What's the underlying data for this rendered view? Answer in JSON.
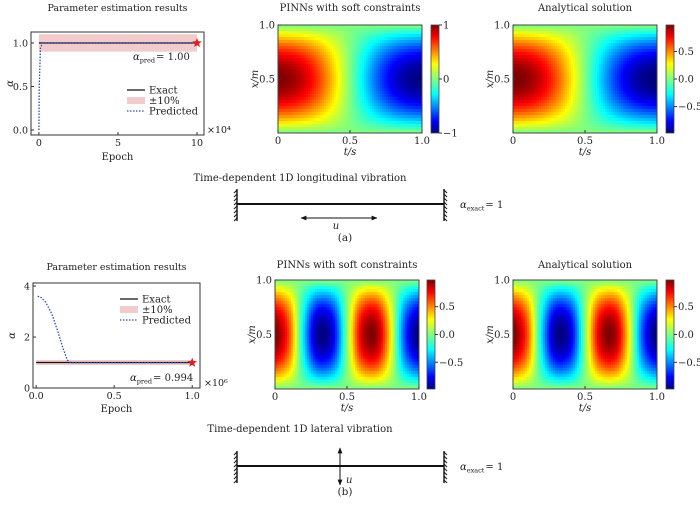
{
  "colors": {
    "band": "#f2cccc",
    "predicted": "#2b4fb0",
    "exact": "#111111",
    "star": "#e02020"
  },
  "chart_data": [
    {
      "id": "a-param",
      "type": "line",
      "title": "Parameter estimation results",
      "xlabel": "Epoch",
      "ylabel": "α",
      "x_multiplier": "×10⁴",
      "xlim": [
        -0.5,
        10.44
      ],
      "ylim": [
        -0.057,
        1.126
      ],
      "xticks": [
        0,
        5,
        10
      ],
      "xtick_labels": [
        "0",
        "5",
        "10"
      ],
      "yticks": [
        0,
        0.5,
        1.0
      ],
      "ytick_labels": [
        "0.0",
        "0.5",
        "1.0"
      ],
      "exact": 1.0,
      "band": [
        0.9,
        1.1
      ],
      "predicted": [
        [
          0,
          0
        ],
        [
          0.02,
          0.5
        ],
        [
          0.1,
          0.95
        ],
        [
          0.25,
          1.0
        ],
        [
          10,
          1.0
        ]
      ],
      "final_marker": [
        10,
        1.0
      ],
      "annotation": {
        "base": "α",
        "sub": "pred",
        "value": "= 1.00"
      },
      "legend": [
        "Exact",
        "±10%",
        "Predicted"
      ],
      "legend_position": "center-right"
    },
    {
      "id": "b-param",
      "type": "line",
      "title": "Parameter estimation results",
      "xlabel": "Epoch",
      "ylabel": "α",
      "x_multiplier": "×10⁶",
      "xlim": [
        -0.02,
        1.05
      ],
      "ylim": [
        0,
        4.12
      ],
      "xticks": [
        0,
        0.5,
        1.0
      ],
      "xtick_labels": [
        "0.0",
        "0.5",
        "1.0"
      ],
      "yticks": [
        0,
        2,
        4
      ],
      "ytick_labels": [
        "0",
        "2",
        "4"
      ],
      "exact": 1.0,
      "band": [
        0.9,
        1.1
      ],
      "predicted": [
        [
          0.01,
          3.6
        ],
        [
          0.03,
          3.56
        ],
        [
          0.06,
          3.38
        ],
        [
          0.1,
          2.92
        ],
        [
          0.14,
          2.2
        ],
        [
          0.17,
          1.6
        ],
        [
          0.2,
          1.1
        ],
        [
          0.22,
          0.99
        ],
        [
          1.0,
          0.994
        ]
      ],
      "final_marker": [
        1.0,
        0.994
      ],
      "annotation": {
        "base": "α",
        "sub": "pred",
        "value": "= 0.994"
      },
      "legend": [
        "Exact",
        "±10%",
        "Predicted"
      ],
      "legend_position": "top-right"
    }
  ],
  "heatmaps": {
    "grid_t": [
      0,
      0.1,
      0.2,
      0.3,
      0.4,
      0.5,
      0.6,
      0.7,
      0.8,
      0.9,
      1.0
    ],
    "grid_x": [
      0,
      0.1,
      0.2,
      0.3,
      0.4,
      0.5,
      0.6,
      0.7,
      0.8,
      0.9,
      1.0
    ],
    "z_a": [
      [
        0,
        0,
        0,
        0,
        0,
        0,
        0,
        0,
        0,
        0,
        0
      ],
      [
        0.31,
        0.29,
        0.25,
        0.18,
        0.1,
        0,
        -0.1,
        -0.18,
        -0.25,
        -0.29,
        -0.31
      ],
      [
        0.59,
        0.56,
        0.48,
        0.35,
        0.18,
        0,
        -0.18,
        -0.35,
        -0.48,
        -0.56,
        -0.59
      ],
      [
        0.81,
        0.77,
        0.66,
        0.48,
        0.25,
        0,
        -0.25,
        -0.48,
        -0.66,
        -0.77,
        -0.81
      ],
      [
        0.95,
        0.9,
        0.77,
        0.56,
        0.29,
        0,
        -0.29,
        -0.56,
        -0.77,
        -0.9,
        -0.95
      ],
      [
        1,
        0.95,
        0.81,
        0.59,
        0.31,
        0,
        -0.31,
        -0.59,
        -0.81,
        -0.95,
        -1
      ],
      [
        0.95,
        0.9,
        0.77,
        0.56,
        0.29,
        0,
        -0.29,
        -0.56,
        -0.77,
        -0.9,
        -0.95
      ],
      [
        0.81,
        0.77,
        0.66,
        0.48,
        0.25,
        0,
        -0.25,
        -0.48,
        -0.66,
        -0.77,
        -0.81
      ],
      [
        0.59,
        0.56,
        0.48,
        0.35,
        0.18,
        0,
        -0.18,
        -0.35,
        -0.48,
        -0.56,
        -0.59
      ],
      [
        0.31,
        0.29,
        0.25,
        0.18,
        0.1,
        0,
        -0.1,
        -0.18,
        -0.25,
        -0.29,
        -0.31
      ],
      [
        0,
        0,
        0,
        0,
        0,
        0,
        0,
        0,
        0,
        0,
        0
      ]
    ],
    "z_b": [
      [
        0,
        0,
        0,
        0,
        0,
        0,
        0,
        0,
        0,
        0,
        0
      ],
      [
        0.31,
        0.18,
        -0.1,
        -0.29,
        -0.25,
        0,
        0.25,
        0.29,
        0.1,
        -0.18,
        -0.31
      ],
      [
        0.59,
        0.35,
        -0.18,
        -0.56,
        -0.48,
        0,
        0.48,
        0.56,
        0.18,
        -0.35,
        -0.59
      ],
      [
        0.81,
        0.48,
        -0.25,
        -0.77,
        -0.66,
        0,
        0.66,
        0.77,
        0.25,
        -0.48,
        -0.81
      ],
      [
        0.95,
        0.56,
        -0.29,
        -0.9,
        -0.77,
        0,
        0.77,
        0.9,
        0.29,
        -0.56,
        -0.95
      ],
      [
        1,
        0.59,
        -0.31,
        -0.95,
        -0.81,
        0,
        0.81,
        0.95,
        0.31,
        -0.59,
        -1
      ],
      [
        0.95,
        0.56,
        -0.29,
        -0.9,
        -0.77,
        0,
        0.77,
        0.9,
        0.29,
        -0.56,
        -0.95
      ],
      [
        0.81,
        0.48,
        -0.25,
        -0.77,
        -0.66,
        0,
        0.66,
        0.77,
        0.25,
        -0.48,
        -0.81
      ],
      [
        0.59,
        0.35,
        -0.18,
        -0.56,
        -0.48,
        0,
        0.48,
        0.56,
        0.18,
        -0.35,
        -0.59
      ],
      [
        0.31,
        0.18,
        -0.1,
        -0.29,
        -0.25,
        0,
        0.25,
        0.29,
        0.1,
        -0.18,
        -0.31
      ],
      [
        0,
        0,
        0,
        0,
        0,
        0,
        0,
        0,
        0,
        0,
        0
      ]
    ],
    "maps": [
      {
        "id": "a-pinn",
        "type": "heatmap",
        "title": "PINNs with soft constraints",
        "z": "z_a",
        "colormap": "jet",
        "vlim": [
          -1,
          1
        ],
        "cbar_ticks": [
          1,
          0,
          -1
        ],
        "cbar_labels": [
          "1",
          "0",
          "−1"
        ]
      },
      {
        "id": "a-analytical",
        "type": "heatmap",
        "title": "Analytical solution",
        "z": "z_a",
        "colormap": "jet",
        "vlim": [
          -0.98,
          0.98
        ],
        "cbar_ticks": [
          0.5,
          0,
          -0.5
        ],
        "cbar_labels": [
          "0.5",
          "0.0",
          "−0.5"
        ]
      },
      {
        "id": "b-pinn",
        "type": "heatmap",
        "title": "PINNs with soft constraints",
        "z": "z_b",
        "colormap": "jet",
        "vlim": [
          -0.98,
          0.98
        ],
        "cbar_ticks": [
          0.5,
          0,
          -0.5
        ],
        "cbar_labels": [
          "0.5",
          "0.0",
          "−0.5"
        ]
      },
      {
        "id": "b-analytical",
        "type": "heatmap",
        "title": "Analytical solution",
        "z": "z_b",
        "colormap": "jet",
        "vlim": [
          -0.98,
          0.98
        ],
        "cbar_ticks": [
          0.5,
          0,
          -0.5
        ],
        "cbar_labels": [
          "0.5",
          "0.0",
          "−0.5"
        ]
      }
    ],
    "xlabel": "t/s",
    "ylabel": "x/m",
    "xtick_labels": [
      "0",
      "0.5",
      "1.0"
    ],
    "ytick_labels": [
      "0.5",
      "1.0"
    ]
  },
  "diagrams": [
    {
      "title": "Time-dependent 1D longitudinal vibration",
      "u_label": "u",
      "alpha_base": "α",
      "alpha_sub": "exact",
      "alpha_value": "= 1",
      "caption": "(a)",
      "arrow": "horizontal"
    },
    {
      "title": "Time-dependent 1D lateral vibration",
      "u_label": "u",
      "alpha_base": "α",
      "alpha_sub": "exact",
      "alpha_value": "= 1",
      "caption": "(b)",
      "arrow": "vertical"
    }
  ]
}
